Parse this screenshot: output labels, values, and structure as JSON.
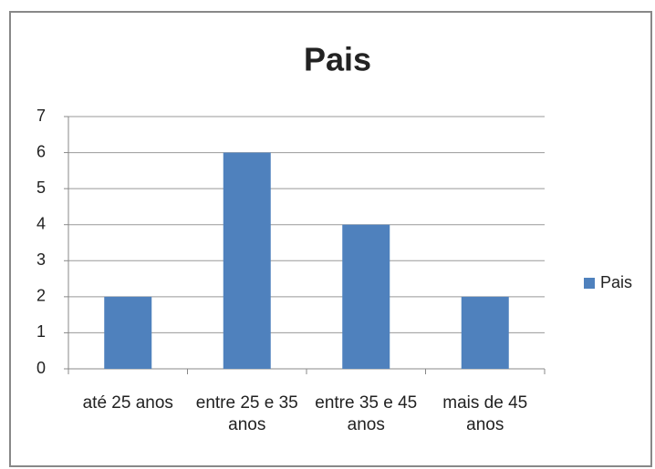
{
  "chart_data": {
    "type": "bar",
    "title": "Pais",
    "categories": [
      "até 25 anos",
      "entre 25 e 35 anos",
      "entre 35 e 45 anos",
      "mais de 45 anos"
    ],
    "series": [
      {
        "name": "Pais",
        "color": "#4f81bd",
        "values": [
          2,
          6,
          4,
          2
        ]
      }
    ],
    "ylim": [
      0,
      7
    ],
    "yticks": [
      0,
      1,
      2,
      3,
      4,
      5,
      6,
      7
    ],
    "grid": true,
    "legend": "right"
  }
}
